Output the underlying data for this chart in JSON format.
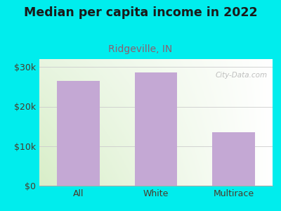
{
  "title": "Median per capita income in 2022",
  "subtitle": "Ridgeville, IN",
  "categories": [
    "All",
    "White",
    "Multirace"
  ],
  "values": [
    26500,
    28700,
    13500
  ],
  "bar_color": "#C4A8D4",
  "background_color": "#00EDED",
  "plot_bg_topleft": "#E8F5E0",
  "plot_bg_topright": "#FFFFFF",
  "plot_bg_bottomleft": "#D8EEC8",
  "plot_bg_bottomright": "#FFFFFF",
  "title_fontsize": 12.5,
  "subtitle_fontsize": 10,
  "subtitle_color": "#8B6070",
  "title_color": "#1A1A1A",
  "tick_color": "#4A3A2A",
  "ylim": [
    0,
    32000
  ],
  "yticks": [
    0,
    10000,
    20000,
    30000
  ],
  "ytick_labels": [
    "$0",
    "$10k",
    "$20k",
    "$30k"
  ],
  "watermark": "City-Data.com"
}
